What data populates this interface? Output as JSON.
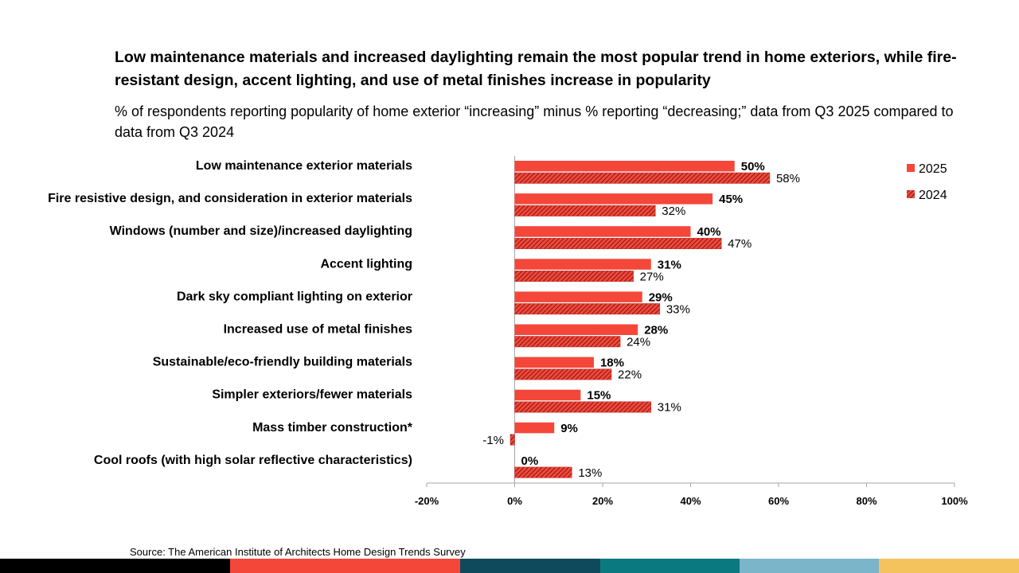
{
  "header": {
    "title": "Low maintenance materials and increased daylighting remain the most popular trend in home exteriors, while fire-resistant design, accent lighting, and use of metal finishes increase in popularity",
    "subtitle": "% of respondents reporting popularity of home exterior “increasing” minus % reporting “decreasing;” data from Q3 2025 compared to data from Q3 2024"
  },
  "source": "Source: The American Institute of Architects Home Design Trends Survey",
  "chart_data": {
    "type": "bar",
    "orientation": "horizontal",
    "title": "Low maintenance materials and increased daylighting remain the most popular trend in home exteriors, while fire-resistant design, accent lighting, and use of metal finishes increase in popularity",
    "categories": [
      "Low maintenance exterior materials",
      "Fire resistive design, and consideration in exterior materials",
      "Windows (number and size)/increased daylighting",
      "Accent lighting",
      "Dark sky compliant lighting on exterior",
      "Increased use of metal finishes",
      "Sustainable/eco-friendly building materials",
      "Simpler exteriors/fewer materials",
      "Mass timber construction*",
      "Cool roofs (with high solar reflective characteristics)"
    ],
    "series": [
      {
        "name": "2025",
        "values": [
          50,
          45,
          40,
          31,
          29,
          28,
          18,
          15,
          9,
          0
        ],
        "color": "#f4473a",
        "pattern": "solid"
      },
      {
        "name": "2024",
        "values": [
          58,
          32,
          47,
          27,
          33,
          24,
          22,
          31,
          -1,
          13
        ],
        "color": "#c8302a",
        "pattern": "hatched"
      }
    ],
    "xlim": [
      -20,
      100
    ],
    "ticks": [
      -20,
      0,
      20,
      40,
      60,
      80,
      100
    ],
    "tick_labels": [
      "-20%",
      "0%",
      "20%",
      "40%",
      "60%",
      "80%",
      "100%"
    ],
    "value_suffix": "%",
    "legend_position": "top-right",
    "xlabel": "",
    "ylabel": ""
  },
  "footer_colors": [
    "#000000",
    "#f4473a",
    "#0e4a5c",
    "#0b7a80",
    "#7ab5c9",
    "#f5c35e"
  ]
}
